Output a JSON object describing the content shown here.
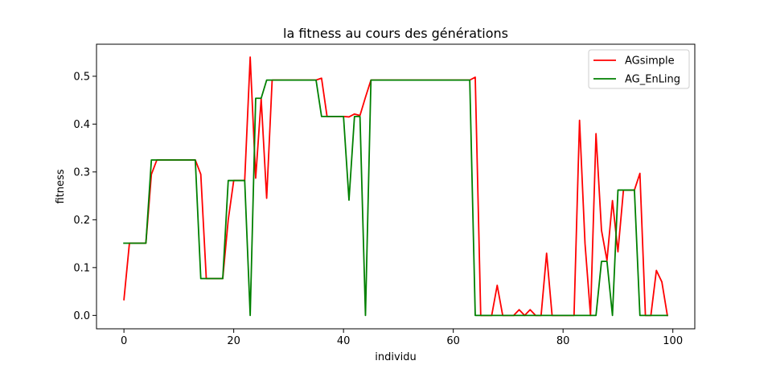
{
  "chart_data": {
    "type": "line",
    "title": "la fitness au cours des générations",
    "xlabel": "individu",
    "ylabel": "fitness",
    "xlim": [
      -5,
      104
    ],
    "ylim": [
      -0.028,
      0.567
    ],
    "xticks": [
      0,
      20,
      40,
      60,
      80,
      100
    ],
    "yticks": [
      0.0,
      0.1,
      0.2,
      0.3,
      0.4,
      0.5
    ],
    "xtick_labels": [
      "0",
      "20",
      "40",
      "60",
      "80",
      "100"
    ],
    "ytick_labels": [
      "0.0",
      "0.1",
      "0.2",
      "0.3",
      "0.4",
      "0.5"
    ],
    "grid": false,
    "legend_position": "upper right",
    "series": [
      {
        "name": "AGsimple",
        "color": "#ff0000",
        "x": [
          0,
          1,
          2,
          3,
          4,
          5,
          6,
          7,
          8,
          9,
          10,
          11,
          12,
          13,
          14,
          15,
          16,
          17,
          18,
          19,
          20,
          21,
          22,
          23,
          24,
          25,
          26,
          27,
          28,
          29,
          30,
          31,
          32,
          33,
          34,
          35,
          36,
          37,
          38,
          39,
          40,
          41,
          42,
          43,
          44,
          45,
          46,
          47,
          48,
          49,
          50,
          51,
          52,
          53,
          54,
          55,
          56,
          57,
          58,
          59,
          60,
          61,
          62,
          63,
          64,
          65,
          66,
          67,
          68,
          69,
          70,
          71,
          72,
          73,
          74,
          75,
          76,
          77,
          78,
          79,
          80,
          81,
          82,
          83,
          84,
          85,
          86,
          87,
          88,
          89,
          90,
          91,
          92,
          93,
          94,
          95,
          96,
          97,
          98,
          99
        ],
        "values": [
          0.033,
          0.151,
          0.151,
          0.151,
          0.151,
          0.295,
          0.325,
          0.325,
          0.325,
          0.325,
          0.325,
          0.325,
          0.325,
          0.325,
          0.295,
          0.077,
          0.077,
          0.077,
          0.077,
          0.2,
          0.282,
          0.282,
          0.282,
          0.54,
          0.287,
          0.453,
          0.245,
          0.492,
          0.492,
          0.492,
          0.492,
          0.492,
          0.492,
          0.492,
          0.492,
          0.492,
          0.496,
          0.416,
          0.416,
          0.416,
          0.416,
          0.415,
          0.421,
          0.418,
          0.456,
          0.492,
          0.492,
          0.492,
          0.492,
          0.492,
          0.492,
          0.492,
          0.492,
          0.492,
          0.492,
          0.492,
          0.492,
          0.492,
          0.492,
          0.492,
          0.492,
          0.492,
          0.492,
          0.492,
          0.498,
          0.0,
          0.0,
          0.0,
          0.063,
          0.0,
          0.0,
          0.0,
          0.012,
          0.0,
          0.012,
          0.0,
          0.0,
          0.13,
          0.0,
          0.0,
          0.0,
          0.0,
          0.0,
          0.408,
          0.15,
          0.0,
          0.38,
          0.178,
          0.115,
          0.24,
          0.133,
          0.262,
          0.262,
          0.262,
          0.297,
          0.0,
          0.0,
          0.094,
          0.07,
          0.0
        ]
      },
      {
        "name": "AG_EnLing",
        "color": "#008000",
        "x": [
          0,
          1,
          2,
          3,
          4,
          5,
          6,
          7,
          8,
          9,
          10,
          11,
          12,
          13,
          14,
          15,
          16,
          17,
          18,
          19,
          20,
          21,
          22,
          23,
          24,
          25,
          26,
          27,
          28,
          29,
          30,
          31,
          32,
          33,
          34,
          35,
          36,
          37,
          38,
          39,
          40,
          41,
          42,
          43,
          44,
          45,
          46,
          47,
          48,
          49,
          50,
          51,
          52,
          53,
          54,
          55,
          56,
          57,
          58,
          59,
          60,
          61,
          62,
          63,
          64,
          65,
          66,
          67,
          68,
          69,
          70,
          71,
          72,
          73,
          74,
          75,
          76,
          77,
          78,
          79,
          80,
          81,
          82,
          83,
          84,
          85,
          86,
          87,
          88,
          89,
          90,
          91,
          92,
          93,
          94,
          95,
          96,
          97,
          98,
          99
        ],
        "values": [
          0.151,
          0.151,
          0.151,
          0.151,
          0.151,
          0.325,
          0.325,
          0.325,
          0.325,
          0.325,
          0.325,
          0.325,
          0.325,
          0.325,
          0.077,
          0.077,
          0.077,
          0.077,
          0.077,
          0.282,
          0.282,
          0.282,
          0.282,
          0.0,
          0.454,
          0.454,
          0.492,
          0.492,
          0.492,
          0.492,
          0.492,
          0.492,
          0.492,
          0.492,
          0.492,
          0.492,
          0.416,
          0.416,
          0.416,
          0.416,
          0.416,
          0.241,
          0.416,
          0.416,
          0.0,
          0.492,
          0.492,
          0.492,
          0.492,
          0.492,
          0.492,
          0.492,
          0.492,
          0.492,
          0.492,
          0.492,
          0.492,
          0.492,
          0.492,
          0.492,
          0.492,
          0.492,
          0.492,
          0.492,
          0.0,
          0.0,
          0.0,
          0.0,
          0.0,
          0.0,
          0.0,
          0.0,
          0.0,
          0.0,
          0.0,
          0.0,
          0.0,
          0.0,
          0.0,
          0.0,
          0.0,
          0.0,
          0.0,
          0.0,
          0.0,
          0.0,
          0.0,
          0.113,
          0.113,
          0.0,
          0.262,
          0.262,
          0.262,
          0.262,
          0.0,
          0.0,
          0.0,
          0.0,
          0.0,
          0.0
        ]
      }
    ]
  }
}
